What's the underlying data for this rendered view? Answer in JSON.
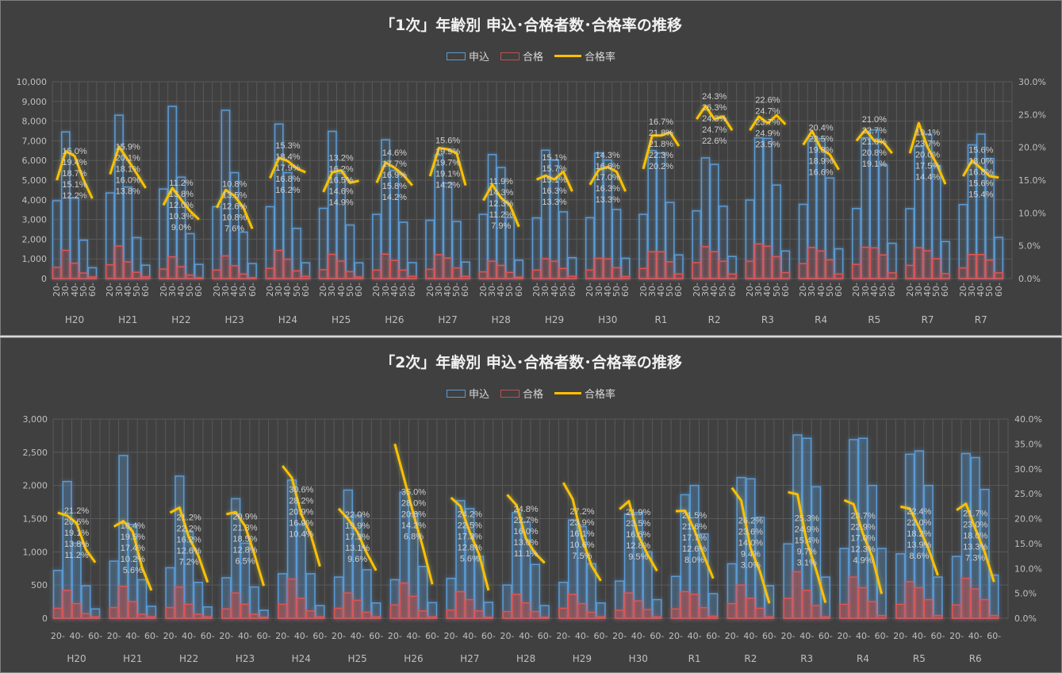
{
  "chart_data": [
    {
      "type": "bar+line",
      "title": "「1次」年齢別 申込･合格者数･合格率の推移",
      "legend": [
        "申込",
        "合格",
        "合格率"
      ],
      "legend_placement": "top",
      "categories": [
        "20-",
        "30-",
        "40-",
        "50-",
        "60-"
      ],
      "groups": [
        "H20",
        "H21",
        "H22",
        "H23",
        "H24",
        "H25",
        "H26",
        "H27",
        "H28",
        "H29",
        "H30",
        "R1",
        "R2",
        "R3",
        "R4",
        "R5",
        "R7",
        "R7"
      ],
      "ylim": [
        0,
        10000
      ],
      "y2lim": [
        0,
        30
      ],
      "y_ticks": [
        "0",
        "1,000",
        "2,000",
        "3,000",
        "4,000",
        "5,000",
        "6,000",
        "7,000",
        "8,000",
        "9,000",
        "10,000"
      ],
      "y2_ticks": [
        "0.0%",
        "5.0%",
        "10.0%",
        "15.0%",
        "20.0%",
        "25.0%",
        "30.0%"
      ],
      "series": [
        {
          "name": "申込",
          "values": [
            [
              3950,
              7450,
              4100,
              1950,
              550
            ],
            [
              4350,
              8300,
              4650,
              2080,
              680
            ],
            [
              4550,
              8750,
              5150,
              2280,
              720
            ],
            [
              3650,
              8550,
              5380,
              2360,
              760
            ],
            [
              3650,
              7850,
              5380,
              2550,
              800
            ],
            [
              3570,
              7480,
              5350,
              2720,
              800
            ],
            [
              3260,
              7050,
              5490,
              2860,
              810
            ],
            [
              2960,
              6270,
              4850,
              2900,
              840
            ],
            [
              3260,
              6300,
              5640,
              3090,
              930
            ],
            [
              3080,
              6520,
              6020,
              3390,
              1060
            ],
            [
              3090,
              6380,
              6020,
              3510,
              1030
            ],
            [
              3260,
              6500,
              6380,
              3870,
              1200
            ],
            [
              3440,
              6130,
              5800,
              3670,
              1120
            ],
            [
              3990,
              7150,
              7120,
              4750,
              1400
            ],
            [
              3770,
              7100,
              7100,
              5110,
              1510
            ],
            [
              3560,
              7150,
              7550,
              5770,
              1790
            ],
            [
              3550,
              6710,
              7340,
              5720,
              1880
            ],
            [
              3760,
              6790,
              7340,
              6100,
              2090
            ]
          ]
        },
        {
          "name": "合格",
          "values": [
            [
              570,
              1430,
              780,
              280,
              80
            ],
            [
              700,
              1650,
              850,
              320,
              90
            ],
            [
              480,
              1100,
              600,
              180,
              40
            ],
            [
              430,
              1150,
              650,
              230,
              40
            ],
            [
              520,
              1430,
              980,
              390,
              110
            ],
            [
              450,
              1230,
              890,
              350,
              80
            ],
            [
              430,
              1240,
              920,
              430,
              110
            ],
            [
              470,
              1210,
              1040,
              540,
              110
            ],
            [
              340,
              880,
              670,
              310,
              70
            ],
            [
              430,
              1010,
              880,
              510,
              110
            ],
            [
              430,
              1030,
              1000,
              550,
              100
            ],
            [
              510,
              1360,
              1360,
              850,
              230
            ],
            [
              810,
              1620,
              1370,
              880,
              230
            ],
            [
              880,
              1760,
              1640,
              1110,
              300
            ],
            [
              760,
              1580,
              1400,
              950,
              230
            ],
            [
              720,
              1590,
              1560,
              1200,
              290
            ],
            [
              670,
              1570,
              1410,
              1010,
              250
            ],
            [
              540,
              1220,
              1220,
              940,
              290
            ]
          ]
        },
        {
          "name": "合格率",
          "values": [
            [
              15.0,
              19.4,
              18.7,
              15.1,
              12.2
            ],
            [
              15.9,
              20.1,
              18.1,
              16.0,
              13.8
            ],
            [
              11.2,
              13.8,
              12.0,
              10.3,
              9.0
            ],
            [
              10.8,
              13.5,
              12.6,
              10.8,
              7.6
            ],
            [
              15.3,
              18.4,
              17.9,
              16.8,
              16.2
            ],
            [
              13.2,
              16.2,
              16.5,
              14.6,
              14.9
            ],
            [
              14.6,
              17.7,
              16.9,
              15.8,
              14.2
            ],
            [
              15.6,
              19.9,
              19.7,
              19.1,
              14.2
            ],
            [
              11.9,
              14.3,
              12.3,
              11.2,
              7.9
            ],
            [
              15.1,
              15.7,
              15.1,
              16.3,
              13.3
            ],
            [
              14.3,
              16.6,
              17.0,
              16.3,
              13.3
            ],
            [
              16.7,
              21.8,
              21.8,
              22.3,
              20.2
            ],
            [
              24.3,
              26.3,
              24.3,
              24.7,
              22.6
            ],
            [
              22.6,
              24.7,
              23.7,
              24.9,
              23.5
            ],
            [
              20.4,
              22.5,
              19.8,
              18.9,
              16.6
            ],
            [
              21.0,
              22.7,
              21.0,
              20.8,
              19.1
            ],
            [
              19.1,
              23.7,
              20.0,
              17.5,
              14.4
            ],
            [
              15.6,
              18.0,
              16.8,
              15.6,
              15.4
            ]
          ]
        }
      ]
    },
    {
      "type": "bar+line",
      "title": "「2次」年齢別 申込･合格者数･合格率の推移",
      "legend": [
        "申込",
        "合格",
        "合格率"
      ],
      "legend_placement": "top",
      "categories": [
        "20-",
        "30-",
        "40-",
        "50-",
        "60-"
      ],
      "groups": [
        "H20",
        "H21",
        "H22",
        "H23",
        "H24",
        "H25",
        "H26",
        "H27",
        "H28",
        "H29",
        "H30",
        "R1",
        "R2",
        "R3",
        "R4",
        "R5",
        "R6"
      ],
      "ylim": [
        0,
        3000
      ],
      "y2lim": [
        0,
        40
      ],
      "y_ticks": [
        "0",
        "500",
        "1,000",
        "1,500",
        "2,000",
        "2,500",
        "3,000"
      ],
      "y2_ticks": [
        "0.0%",
        "5.0%",
        "10.0%",
        "15.0%",
        "20.0%",
        "25.0%",
        "30.0%",
        "35.0%",
        "40.0%"
      ],
      "series": [
        {
          "name": "申込",
          "values": [
            [
              720,
              2060,
              1130,
              490,
              140
            ],
            [
              860,
              2450,
              1410,
              580,
              180
            ],
            [
              760,
              2140,
              1300,
              540,
              170
            ],
            [
              610,
              1800,
              1130,
              470,
              120
            ],
            [
              670,
              2080,
              1420,
              670,
              190
            ],
            [
              620,
              1930,
              1550,
              730,
              230
            ],
            [
              580,
              1900,
              1580,
              780,
              235
            ],
            [
              600,
              1770,
              1650,
              930,
              240
            ],
            [
              500,
              1590,
              1450,
              810,
              190
            ],
            [
              540,
              1480,
              1380,
              820,
              230
            ],
            [
              560,
              1570,
              1590,
              1000,
              280
            ],
            [
              630,
              1860,
              2000,
              1270,
              370
            ],
            [
              820,
              2120,
              2100,
              1520,
              490
            ],
            [
              1120,
              2760,
              2710,
              1980,
              620
            ],
            [
              1050,
              2690,
              2710,
              2000,
              1050
            ],
            [
              970,
              2470,
              2520,
              2000,
              620
            ],
            [
              930,
              2480,
              2420,
              1940,
              650
            ]
          ]
        },
        {
          "name": "合格",
          "values": [
            [
              150,
              420,
              220,
              70,
              20
            ],
            [
              160,
              480,
              250,
              60,
              20
            ],
            [
              160,
              470,
              210,
              60,
              20
            ],
            [
              140,
              380,
              210,
              60,
              15
            ],
            [
              210,
              590,
              300,
              110,
              20
            ],
            [
              150,
              380,
              270,
              90,
              20
            ],
            [
              200,
              530,
              330,
              110,
              20
            ],
            [
              120,
              400,
              280,
              110,
              15
            ],
            [
              100,
              360,
              230,
              100,
              15
            ],
            [
              150,
              360,
              220,
              90,
              20
            ],
            [
              120,
              380,
              260,
              130,
              20
            ],
            [
              140,
              400,
              360,
              160,
              30
            ],
            [
              220,
              500,
              300,
              150,
              20
            ],
            [
              300,
              700,
              420,
              190,
              20
            ],
            [
              210,
              620,
              460,
              250,
              40
            ],
            [
              210,
              550,
              460,
              280,
              40
            ],
            [
              200,
              600,
              440,
              280,
              40
            ]
          ]
        },
        {
          "name": "合格率",
          "values": [
            [
              21.2,
              20.6,
              19.1,
              13.8,
              11.2
            ],
            [
              18.4,
              19.5,
              17.4,
              10.2,
              5.6
            ],
            [
              21.2,
              22.2,
              16.2,
              12.6,
              7.2
            ],
            [
              20.9,
              21.3,
              18.5,
              12.8,
              6.5
            ],
            [
              30.6,
              28.2,
              20.9,
              16.9,
              10.4
            ],
            [
              22.0,
              19.9,
              17.3,
              13.1,
              9.6
            ],
            [
              35.0,
              28.0,
              20.8,
              14.2,
              6.8
            ],
            [
              24.2,
              22.5,
              17.3,
              12.8,
              5.6
            ],
            [
              24.8,
              22.7,
              16.0,
              13.0,
              11.1
            ],
            [
              27.2,
              23.9,
              16.1,
              10.6,
              7.5
            ],
            [
              21.9,
              23.5,
              16.6,
              12.8,
              9.5
            ],
            [
              21.5,
              21.6,
              17.7,
              12.6,
              8.0
            ],
            [
              26.2,
              23.6,
              14.0,
              9.4,
              3.0
            ],
            [
              25.3,
              24.9,
              15.4,
              9.7,
              3.1
            ],
            [
              23.7,
              22.9,
              17.0,
              12.3,
              4.9
            ],
            [
              22.4,
              22.0,
              18.2,
              13.9,
              8.6
            ],
            [
              21.7,
              23.0,
              18.0,
              13.3,
              7.3
            ]
          ]
        }
      ]
    }
  ],
  "colors": {
    "applicants": "#5b9bd5",
    "passed": "#c0504d",
    "rate": "#ffc000",
    "background": "#404040"
  }
}
